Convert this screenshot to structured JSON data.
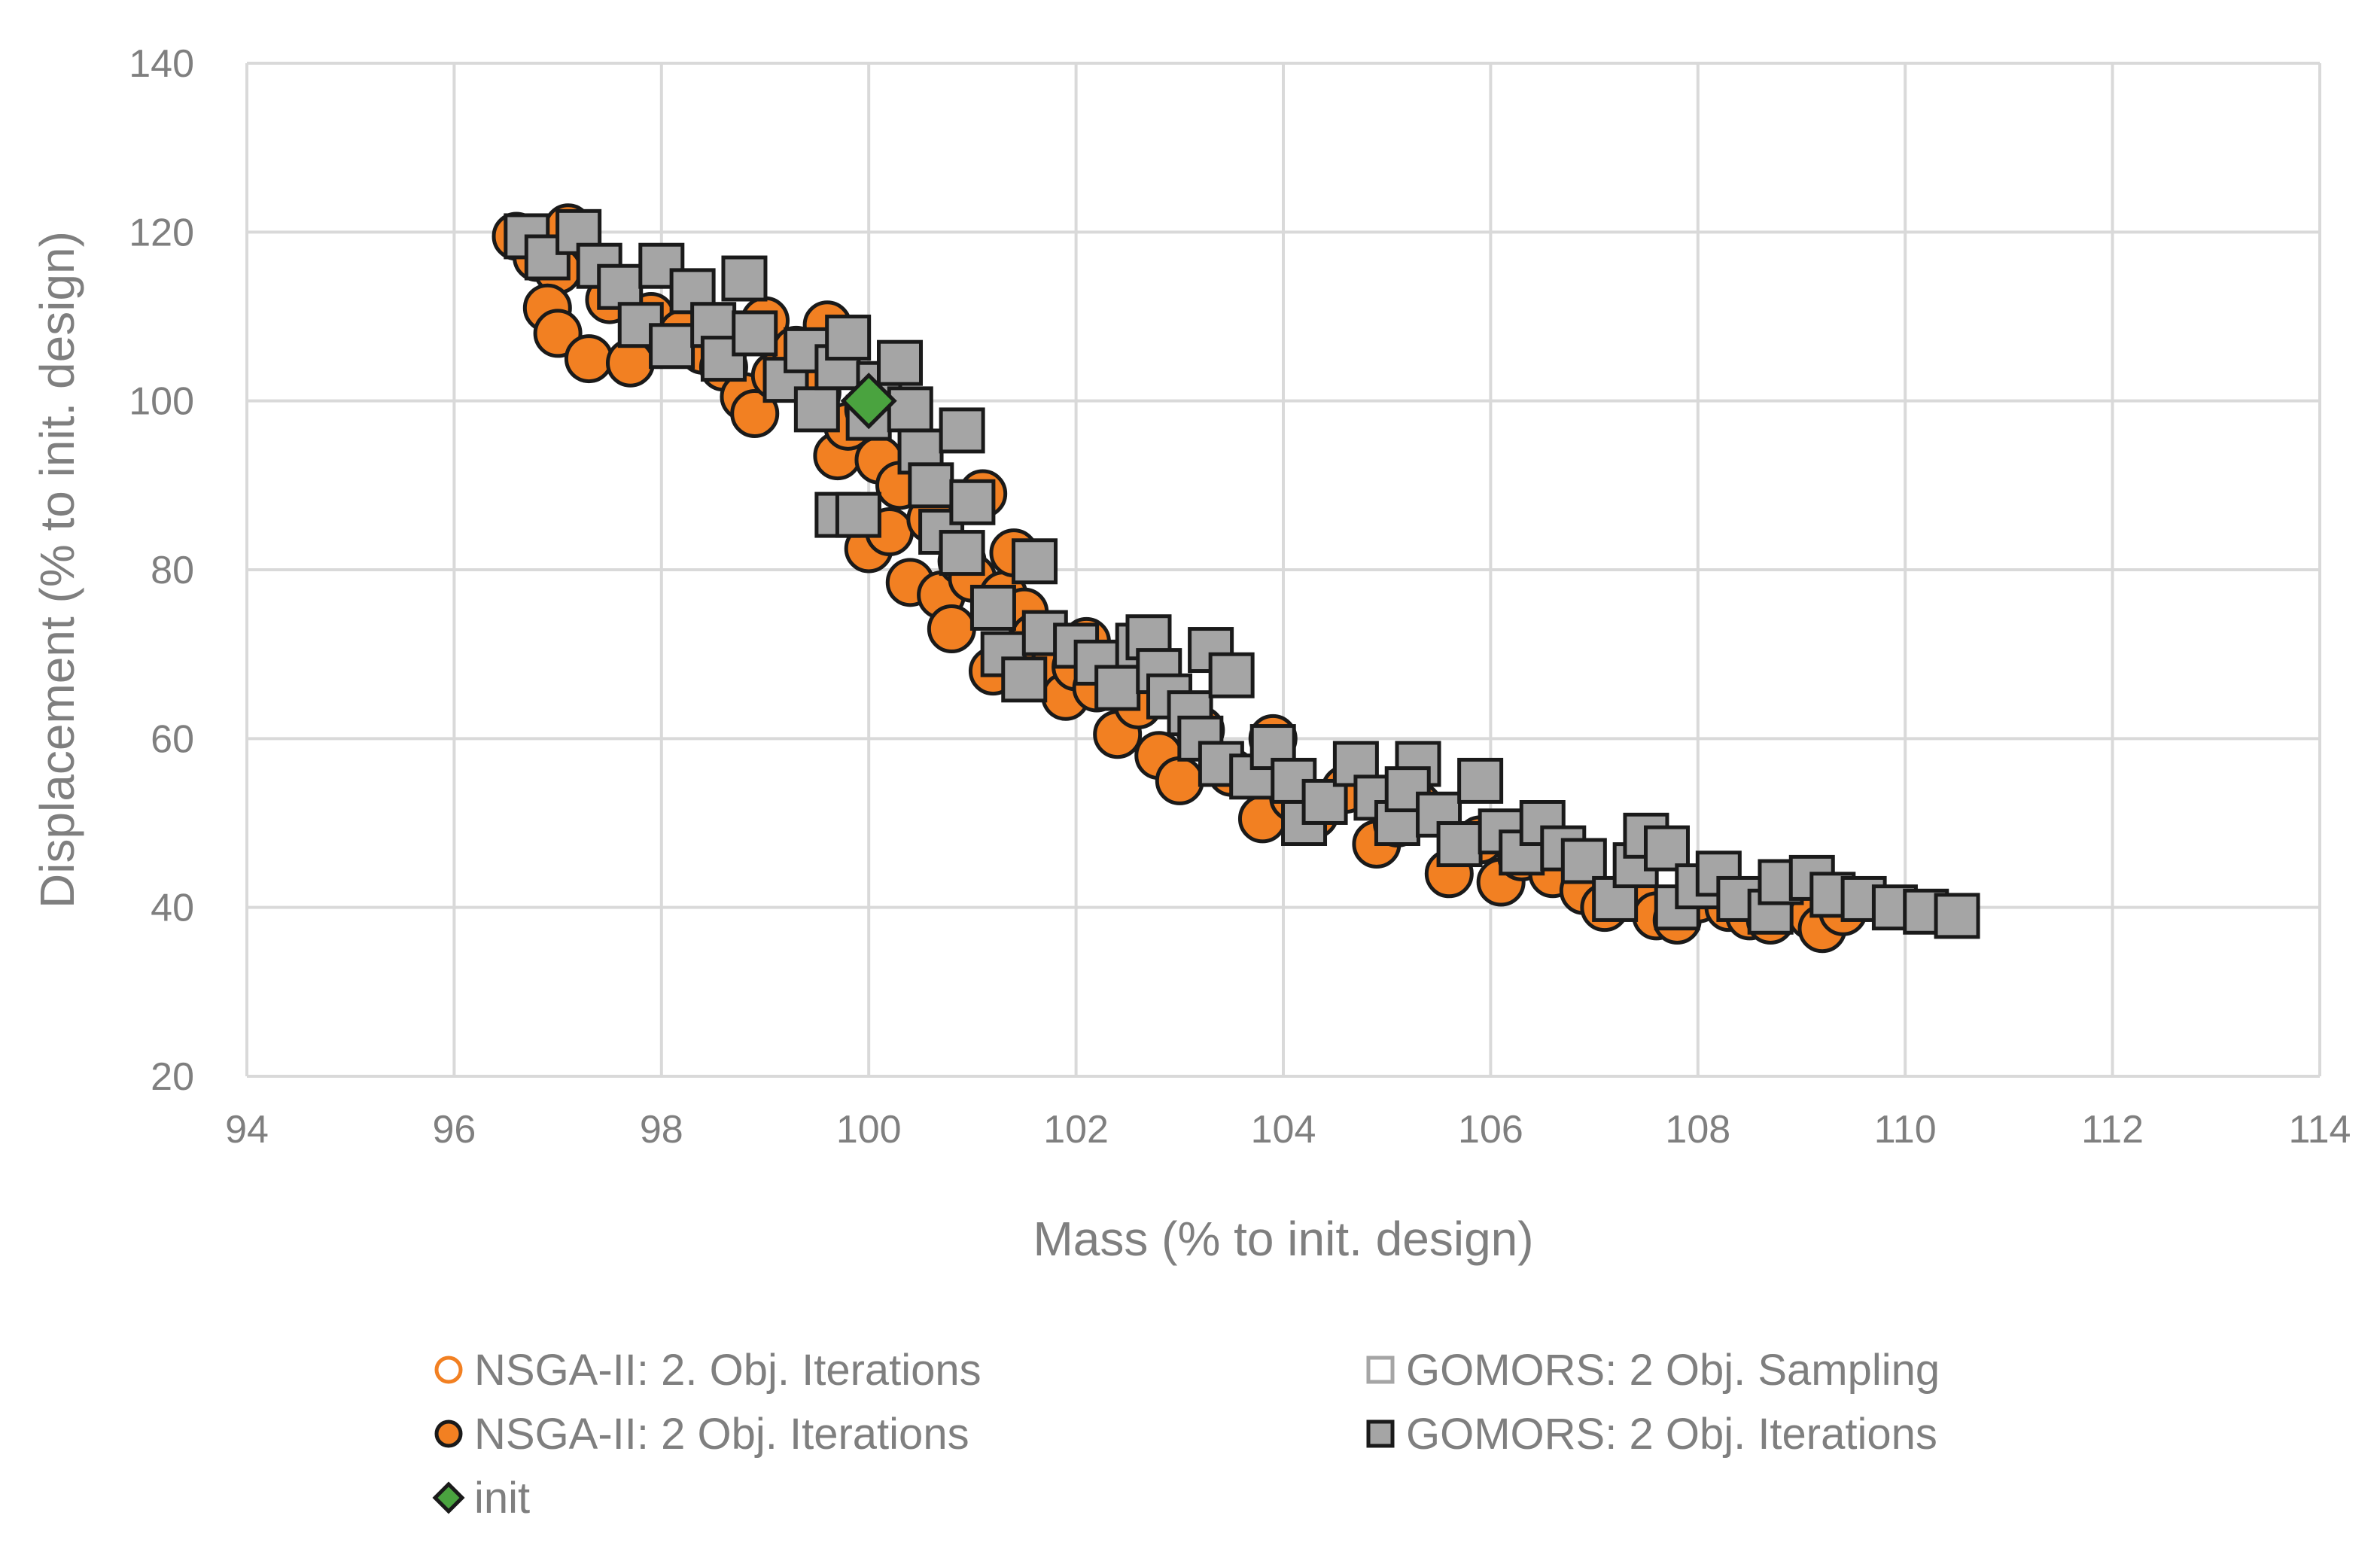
{
  "chart_data": {
    "type": "scatter",
    "title": "",
    "xlabel": "Mass (% to init. design)",
    "ylabel": "Displacement (% to init. design)",
    "xlim": [
      94,
      114
    ],
    "ylim": [
      20,
      140
    ],
    "xticks": [
      94,
      96,
      98,
      100,
      102,
      104,
      106,
      108,
      110,
      112,
      114
    ],
    "yticks": [
      20,
      40,
      60,
      80,
      100,
      120,
      140
    ],
    "grid": true,
    "legend_position": "bottom",
    "colors": {
      "nsga_orange": "#f28022",
      "gomors_gray": "#a5a5a5",
      "init_green": "#4aa33f",
      "edge": "#1a1a1a",
      "grid": "#d9d9d9",
      "text": "#7f7f7f"
    },
    "series": [
      {
        "name": "NSGA-II: 2. Obj. Iterations",
        "marker": "circle-open",
        "points": []
      },
      {
        "name": "NSGA-II: 2 Obj. Iterations",
        "marker": "circle-filled",
        "points": [
          [
            96.6,
            119.5
          ],
          [
            96.8,
            117
          ],
          [
            97.0,
            115.5
          ],
          [
            97.1,
            120.5
          ],
          [
            96.9,
            111
          ],
          [
            97.0,
            108
          ],
          [
            97.3,
            105
          ],
          [
            97.5,
            112
          ],
          [
            97.7,
            104.5
          ],
          [
            97.9,
            110
          ],
          [
            98.2,
            108
          ],
          [
            98.4,
            106
          ],
          [
            98.6,
            104
          ],
          [
            98.8,
            100.5
          ],
          [
            98.9,
            98.5
          ],
          [
            99.0,
            109.5
          ],
          [
            99.1,
            103
          ],
          [
            99.3,
            106
          ],
          [
            99.5,
            101
          ],
          [
            99.6,
            109
          ],
          [
            99.7,
            93.5
          ],
          [
            99.8,
            97
          ],
          [
            100.0,
            99
          ],
          [
            100.1,
            93
          ],
          [
            100.0,
            82.5
          ],
          [
            100.2,
            84.5
          ],
          [
            100.3,
            90
          ],
          [
            100.4,
            78.5
          ],
          [
            100.6,
            86
          ],
          [
            100.7,
            77
          ],
          [
            100.8,
            73
          ],
          [
            100.9,
            81
          ],
          [
            101.0,
            79
          ],
          [
            101.1,
            89
          ],
          [
            101.2,
            68
          ],
          [
            101.3,
            77
          ],
          [
            101.4,
            82
          ],
          [
            101.5,
            75
          ],
          [
            101.6,
            72
          ],
          [
            101.8,
            69
          ],
          [
            101.9,
            65
          ],
          [
            102.0,
            68.5
          ],
          [
            102.1,
            71.5
          ],
          [
            102.2,
            66
          ],
          [
            102.4,
            60.5
          ],
          [
            102.6,
            64
          ],
          [
            102.8,
            58
          ],
          [
            103.0,
            55
          ],
          [
            103.2,
            61
          ],
          [
            103.5,
            56
          ],
          [
            103.8,
            50.5
          ],
          [
            103.9,
            60
          ],
          [
            104.1,
            53
          ],
          [
            104.3,
            51
          ],
          [
            104.6,
            54
          ],
          [
            104.9,
            47.5
          ],
          [
            105.1,
            50
          ],
          [
            105.3,
            52
          ],
          [
            105.6,
            44
          ],
          [
            105.9,
            48
          ],
          [
            106.1,
            43
          ],
          [
            106.3,
            46
          ],
          [
            106.6,
            44
          ],
          [
            106.9,
            42
          ],
          [
            107.1,
            40
          ],
          [
            107.4,
            41.5
          ],
          [
            107.6,
            39
          ],
          [
            107.8,
            38.5
          ],
          [
            108.0,
            41
          ],
          [
            108.3,
            40
          ],
          [
            108.5,
            39
          ],
          [
            108.7,
            38.5
          ],
          [
            108.9,
            41
          ],
          [
            109.1,
            39
          ],
          [
            109.2,
            37.5
          ],
          [
            109.4,
            39.5
          ]
        ]
      },
      {
        "name": "GOMORS: 2 Obj. Sampling",
        "marker": "square-open",
        "points": []
      },
      {
        "name": "GOMORS: 2 Obj. Iterations",
        "marker": "square-filled",
        "points": [
          [
            96.7,
            119.5
          ],
          [
            96.9,
            117
          ],
          [
            97.2,
            120
          ],
          [
            97.4,
            116
          ],
          [
            97.6,
            113.5
          ],
          [
            97.8,
            109
          ],
          [
            98.0,
            116
          ],
          [
            98.1,
            106.5
          ],
          [
            98.3,
            113
          ],
          [
            98.5,
            109
          ],
          [
            98.6,
            105
          ],
          [
            98.8,
            114.5
          ],
          [
            98.9,
            108
          ],
          [
            99.2,
            102.5
          ],
          [
            99.4,
            106
          ],
          [
            99.5,
            99
          ],
          [
            99.7,
            104
          ],
          [
            99.8,
            107.5
          ],
          [
            100.0,
            98
          ],
          [
            100.1,
            102
          ],
          [
            100.3,
            104.5
          ],
          [
            100.4,
            99
          ],
          [
            100.5,
            94
          ],
          [
            100.6,
            90
          ],
          [
            100.7,
            84.5
          ],
          [
            100.9,
            96.5
          ],
          [
            101.0,
            88
          ],
          [
            100.9,
            82
          ],
          [
            99.7,
            86.5
          ],
          [
            99.9,
            86.5
          ],
          [
            101.2,
            75.5
          ],
          [
            101.3,
            70
          ],
          [
            101.5,
            67
          ],
          [
            101.6,
            81
          ],
          [
            101.7,
            72.5
          ],
          [
            102.0,
            71
          ],
          [
            102.2,
            69
          ],
          [
            102.4,
            66
          ],
          [
            102.6,
            71
          ],
          [
            102.7,
            72
          ],
          [
            102.8,
            68
          ],
          [
            102.9,
            65
          ],
          [
            103.1,
            63
          ],
          [
            103.3,
            70.5
          ],
          [
            103.5,
            67.5
          ],
          [
            103.2,
            60
          ],
          [
            103.4,
            57
          ],
          [
            103.7,
            55.5
          ],
          [
            103.9,
            59
          ],
          [
            104.1,
            55
          ],
          [
            104.2,
            50
          ],
          [
            104.4,
            52.5
          ],
          [
            104.7,
            57
          ],
          [
            104.9,
            53
          ],
          [
            105.1,
            50
          ],
          [
            105.3,
            57
          ],
          [
            105.2,
            54
          ],
          [
            105.5,
            51
          ],
          [
            105.7,
            47.5
          ],
          [
            105.9,
            55
          ],
          [
            106.1,
            49
          ],
          [
            106.3,
            46.5
          ],
          [
            106.5,
            50
          ],
          [
            106.7,
            47
          ],
          [
            106.9,
            45.5
          ],
          [
            107.2,
            41
          ],
          [
            107.4,
            45
          ],
          [
            107.5,
            48.5
          ],
          [
            107.7,
            47
          ],
          [
            107.8,
            40
          ],
          [
            108.0,
            42.5
          ],
          [
            108.2,
            44
          ],
          [
            108.4,
            41
          ],
          [
            108.7,
            39.5
          ],
          [
            108.8,
            43
          ],
          [
            109.1,
            43.5
          ],
          [
            109.3,
            41.5
          ],
          [
            109.6,
            41
          ],
          [
            109.9,
            40
          ],
          [
            110.2,
            39.5
          ],
          [
            110.5,
            39
          ]
        ]
      },
      {
        "name": "init",
        "marker": "diamond",
        "points": [
          [
            100.0,
            100.0
          ]
        ]
      }
    ]
  }
}
